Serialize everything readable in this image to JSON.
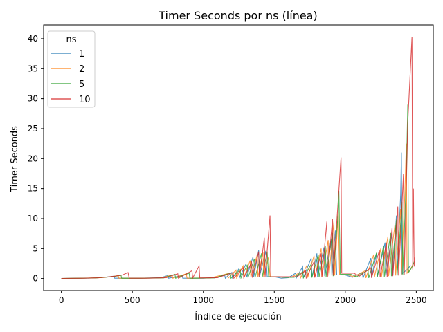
{
  "chart_data": {
    "type": "line",
    "title": "Timer Seconds por ns (línea)",
    "xlabel": "Índice de ejecución",
    "ylabel": "Timer Seconds",
    "xlim": [
      -125,
      2620
    ],
    "ylim": [
      -2.0,
      42.3
    ],
    "xticks": [
      0,
      500,
      1000,
      1500,
      2000,
      2500
    ],
    "yticks": [
      0,
      5,
      10,
      15,
      20,
      25,
      30,
      35,
      40
    ],
    "grid": false,
    "legend": {
      "title": "ns",
      "placement": "top-left"
    },
    "series": [
      {
        "name": "1",
        "color": "#1f77b4",
        "points": [
          [
            0,
            0.02
          ],
          [
            100,
            0.05
          ],
          [
            200,
            0.08
          ],
          [
            250,
            0.12
          ],
          [
            300,
            0.2
          ],
          [
            340,
            0.3
          ],
          [
            370,
            0.4
          ],
          [
            375,
            0.05
          ],
          [
            480,
            0.05
          ],
          [
            560,
            0.05
          ],
          [
            700,
            0.15
          ],
          [
            750,
            0.5
          ],
          [
            755,
            0.05
          ],
          [
            850,
            0.5
          ],
          [
            855,
            0.05
          ],
          [
            1000,
            0.05
          ],
          [
            1100,
            0.2
          ],
          [
            1150,
            0.6
          ],
          [
            1155,
            0.05
          ],
          [
            1200,
            1.0
          ],
          [
            1205,
            0.1
          ],
          [
            1250,
            1.6
          ],
          [
            1255,
            0.15
          ],
          [
            1300,
            2.4
          ],
          [
            1305,
            0.2
          ],
          [
            1350,
            3.6
          ],
          [
            1355,
            0.2
          ],
          [
            1390,
            4.7
          ],
          [
            1395,
            0.3
          ],
          [
            1440,
            4.6
          ],
          [
            1450,
            0.3
          ],
          [
            1500,
            0.3
          ],
          [
            1550,
            0.05
          ],
          [
            1600,
            0.15
          ],
          [
            1650,
            0.9
          ],
          [
            1655,
            0.1
          ],
          [
            1700,
            2.0
          ],
          [
            1705,
            0.15
          ],
          [
            1760,
            3.4
          ],
          [
            1765,
            0.2
          ],
          [
            1800,
            4.2
          ],
          [
            1805,
            0.3
          ],
          [
            1850,
            5.2
          ],
          [
            1855,
            0.4
          ],
          [
            1900,
            6.5
          ],
          [
            1905,
            0.5
          ],
          [
            1930,
            8.0
          ],
          [
            1940,
            0.6
          ],
          [
            2000,
            0.6
          ],
          [
            2050,
            0.2
          ],
          [
            2120,
            1.0
          ],
          [
            2125,
            0.1
          ],
          [
            2180,
            3.4
          ],
          [
            2185,
            0.2
          ],
          [
            2220,
            4.2
          ],
          [
            2225,
            0.3
          ],
          [
            2280,
            6.0
          ],
          [
            2285,
            0.4
          ],
          [
            2330,
            7.6
          ],
          [
            2335,
            0.5
          ],
          [
            2360,
            10.5
          ],
          [
            2365,
            0.6
          ],
          [
            2390,
            14.0
          ],
          [
            2395,
            21.0
          ],
          [
            2400,
            0.8
          ],
          [
            2420,
            1.2
          ],
          [
            2440,
            1.6
          ],
          [
            2460,
            2.2
          ]
        ]
      },
      {
        "name": "2",
        "color": "#ff7f0e",
        "points": [
          [
            0,
            0.02
          ],
          [
            120,
            0.05
          ],
          [
            220,
            0.1
          ],
          [
            280,
            0.15
          ],
          [
            330,
            0.25
          ],
          [
            380,
            0.4
          ],
          [
            400,
            0.5
          ],
          [
            405,
            0.05
          ],
          [
            520,
            0.05
          ],
          [
            700,
            0.1
          ],
          [
            780,
            0.6
          ],
          [
            785,
            0.05
          ],
          [
            880,
            0.8
          ],
          [
            885,
            0.05
          ],
          [
            1050,
            0.1
          ],
          [
            1170,
            0.8
          ],
          [
            1175,
            0.05
          ],
          [
            1230,
            1.4
          ],
          [
            1235,
            0.1
          ],
          [
            1280,
            2.1
          ],
          [
            1285,
            0.15
          ],
          [
            1330,
            3.0
          ],
          [
            1335,
            0.2
          ],
          [
            1380,
            4.0
          ],
          [
            1385,
            0.2
          ],
          [
            1420,
            4.4
          ],
          [
            1425,
            0.3
          ],
          [
            1460,
            3.6
          ],
          [
            1470,
            0.3
          ],
          [
            1520,
            0.3
          ],
          [
            1560,
            0.2
          ],
          [
            1620,
            0.2
          ],
          [
            1680,
            1.0
          ],
          [
            1685,
            0.1
          ],
          [
            1730,
            2.2
          ],
          [
            1735,
            0.15
          ],
          [
            1780,
            3.8
          ],
          [
            1785,
            0.2
          ],
          [
            1830,
            5.0
          ],
          [
            1835,
            0.3
          ],
          [
            1880,
            6.4
          ],
          [
            1885,
            0.4
          ],
          [
            1920,
            9.5
          ],
          [
            1925,
            0.5
          ],
          [
            1950,
            11.0
          ],
          [
            1960,
            0.6
          ],
          [
            2020,
            0.6
          ],
          [
            2060,
            0.3
          ],
          [
            2140,
            1.3
          ],
          [
            2145,
            0.1
          ],
          [
            2200,
            4.0
          ],
          [
            2205,
            0.2
          ],
          [
            2250,
            5.0
          ],
          [
            2255,
            0.3
          ],
          [
            2300,
            7.0
          ],
          [
            2305,
            0.4
          ],
          [
            2350,
            9.0
          ],
          [
            2355,
            0.5
          ],
          [
            2390,
            11.6
          ],
          [
            2395,
            0.6
          ],
          [
            2420,
            14.5
          ],
          [
            2430,
            22.5
          ],
          [
            2435,
            0.9
          ],
          [
            2450,
            1.3
          ],
          [
            2470,
            2.0
          ],
          [
            2480,
            2.6
          ]
        ]
      },
      {
        "name": "5",
        "color": "#2ca02c",
        "points": [
          [
            0,
            0.02
          ],
          [
            140,
            0.05
          ],
          [
            240,
            0.1
          ],
          [
            300,
            0.2
          ],
          [
            350,
            0.3
          ],
          [
            400,
            0.45
          ],
          [
            420,
            0.55
          ],
          [
            425,
            0.05
          ],
          [
            560,
            0.05
          ],
          [
            720,
            0.1
          ],
          [
            800,
            0.7
          ],
          [
            805,
            0.05
          ],
          [
            900,
            0.9
          ],
          [
            905,
            0.05
          ],
          [
            1080,
            0.1
          ],
          [
            1190,
            0.9
          ],
          [
            1195,
            0.05
          ],
          [
            1260,
            1.5
          ],
          [
            1265,
            0.1
          ],
          [
            1310,
            2.3
          ],
          [
            1315,
            0.15
          ],
          [
            1360,
            3.3
          ],
          [
            1365,
            0.2
          ],
          [
            1410,
            4.2
          ],
          [
            1415,
            0.2
          ],
          [
            1450,
            4.5
          ],
          [
            1460,
            0.3
          ],
          [
            1530,
            0.3
          ],
          [
            1580,
            0.2
          ],
          [
            1640,
            0.2
          ],
          [
            1700,
            1.1
          ],
          [
            1705,
            0.1
          ],
          [
            1760,
            2.4
          ],
          [
            1765,
            0.15
          ],
          [
            1810,
            4.0
          ],
          [
            1815,
            0.2
          ],
          [
            1860,
            5.4
          ],
          [
            1865,
            0.3
          ],
          [
            1910,
            7.6
          ],
          [
            1915,
            0.4
          ],
          [
            1950,
            11.0
          ],
          [
            1955,
            14.6
          ],
          [
            1965,
            0.7
          ],
          [
            2040,
            0.7
          ],
          [
            2080,
            0.3
          ],
          [
            2160,
            1.4
          ],
          [
            2165,
            0.1
          ],
          [
            2220,
            4.3
          ],
          [
            2225,
            0.2
          ],
          [
            2270,
            5.5
          ],
          [
            2275,
            0.3
          ],
          [
            2320,
            7.6
          ],
          [
            2325,
            0.4
          ],
          [
            2360,
            9.8
          ],
          [
            2365,
            0.5
          ],
          [
            2400,
            12.8
          ],
          [
            2405,
            0.6
          ],
          [
            2430,
            17.0
          ],
          [
            2440,
            29.0
          ],
          [
            2445,
            1.0
          ],
          [
            2460,
            1.5
          ],
          [
            2475,
            2.2
          ],
          [
            2485,
            2.8
          ]
        ]
      },
      {
        "name": "10",
        "color": "#d62728",
        "points": [
          [
            0,
            0.02
          ],
          [
            160,
            0.05
          ],
          [
            260,
            0.12
          ],
          [
            320,
            0.25
          ],
          [
            380,
            0.4
          ],
          [
            430,
            0.6
          ],
          [
            470,
            1.0
          ],
          [
            478,
            0.05
          ],
          [
            600,
            0.05
          ],
          [
            740,
            0.15
          ],
          [
            820,
            0.8
          ],
          [
            825,
            0.05
          ],
          [
            920,
            1.3
          ],
          [
            925,
            0.1
          ],
          [
            970,
            2.1
          ],
          [
            975,
            0.1
          ],
          [
            1100,
            0.15
          ],
          [
            1210,
            1.0
          ],
          [
            1215,
            0.05
          ],
          [
            1280,
            1.8
          ],
          [
            1285,
            0.1
          ],
          [
            1340,
            2.7
          ],
          [
            1345,
            0.15
          ],
          [
            1390,
            4.5
          ],
          [
            1395,
            0.2
          ],
          [
            1430,
            6.8
          ],
          [
            1435,
            0.3
          ],
          [
            1470,
            10.5
          ],
          [
            1475,
            0.3
          ],
          [
            1540,
            0.3
          ],
          [
            1600,
            0.3
          ],
          [
            1660,
            0.3
          ],
          [
            1720,
            1.3
          ],
          [
            1725,
            0.1
          ],
          [
            1780,
            2.8
          ],
          [
            1785,
            0.15
          ],
          [
            1830,
            4.2
          ],
          [
            1835,
            0.2
          ],
          [
            1870,
            9.5
          ],
          [
            1875,
            0.3
          ],
          [
            1910,
            10.0
          ],
          [
            1915,
            0.5
          ],
          [
            1960,
            16.5
          ],
          [
            1970,
            20.2
          ],
          [
            1975,
            0.9
          ],
          [
            2060,
            0.9
          ],
          [
            2100,
            0.4
          ],
          [
            2180,
            1.8
          ],
          [
            2185,
            0.1
          ],
          [
            2240,
            4.7
          ],
          [
            2245,
            0.2
          ],
          [
            2290,
            6.0
          ],
          [
            2295,
            0.3
          ],
          [
            2330,
            8.5
          ],
          [
            2335,
            0.4
          ],
          [
            2370,
            12.0
          ],
          [
            2375,
            0.5
          ],
          [
            2410,
            17.5
          ],
          [
            2415,
            0.6
          ],
          [
            2440,
            26.0
          ],
          [
            2470,
            40.3
          ],
          [
            2475,
            1.5
          ],
          [
            2480,
            15.0
          ],
          [
            2485,
            2.0
          ],
          [
            2490,
            3.5
          ]
        ]
      }
    ]
  }
}
